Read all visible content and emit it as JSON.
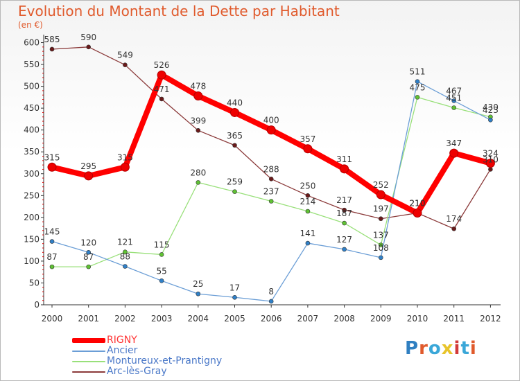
{
  "header": {
    "title": "Evolution du Montant de la Dette par Habitant",
    "unit": "(en €)"
  },
  "logo": {
    "text": "Proxiti",
    "letter_colors": [
      "#2f7fc1",
      "#e05a2c",
      "#3aa7d8",
      "#e8c42a",
      "#d23a3a",
      "#3aa7d8",
      "#e05a2c"
    ]
  },
  "chart_data": {
    "type": "line",
    "title": "Evolution du Montant de la Dette par Habitant",
    "subtitle": "(en €)",
    "xlabel": "",
    "ylabel": "",
    "x": [
      "2000",
      "2001",
      "2002",
      "2003",
      "2004",
      "2005",
      "2006",
      "2007",
      "2008",
      "2009",
      "2010",
      "2011",
      "2012"
    ],
    "ylim": [
      0,
      600
    ],
    "yticks": [
      0,
      50,
      100,
      150,
      200,
      250,
      300,
      350,
      400,
      450,
      500,
      550,
      600
    ],
    "grid": false,
    "legend_position": "bottom-left",
    "series": [
      {
        "name": "RIGNY",
        "color": "#ff0000",
        "marker_color": "#ee0000",
        "values": [
          315,
          295,
          315,
          526,
          478,
          440,
          400,
          357,
          311,
          252,
          210,
          347,
          324
        ]
      },
      {
        "name": "Ancier",
        "color": "#6b9ed6",
        "marker_color": "#2f80c8",
        "values": [
          145,
          120,
          88,
          55,
          25,
          17,
          8,
          141,
          127,
          108,
          511,
          467,
          423
        ]
      },
      {
        "name": "Montureux-et-Prantigny",
        "color": "#99e07a",
        "marker_color": "#5fc233",
        "values": [
          87,
          87,
          121,
          115,
          280,
          259,
          237,
          214,
          187,
          137,
          475,
          451,
          430
        ]
      },
      {
        "name": "Arc-lès-Gray",
        "color": "#8b3a3a",
        "marker_color": "#6b1a1a",
        "values": [
          585,
          590,
          549,
          471,
          399,
          365,
          288,
          250,
          217,
          197,
          210,
          174,
          310
        ]
      }
    ]
  }
}
